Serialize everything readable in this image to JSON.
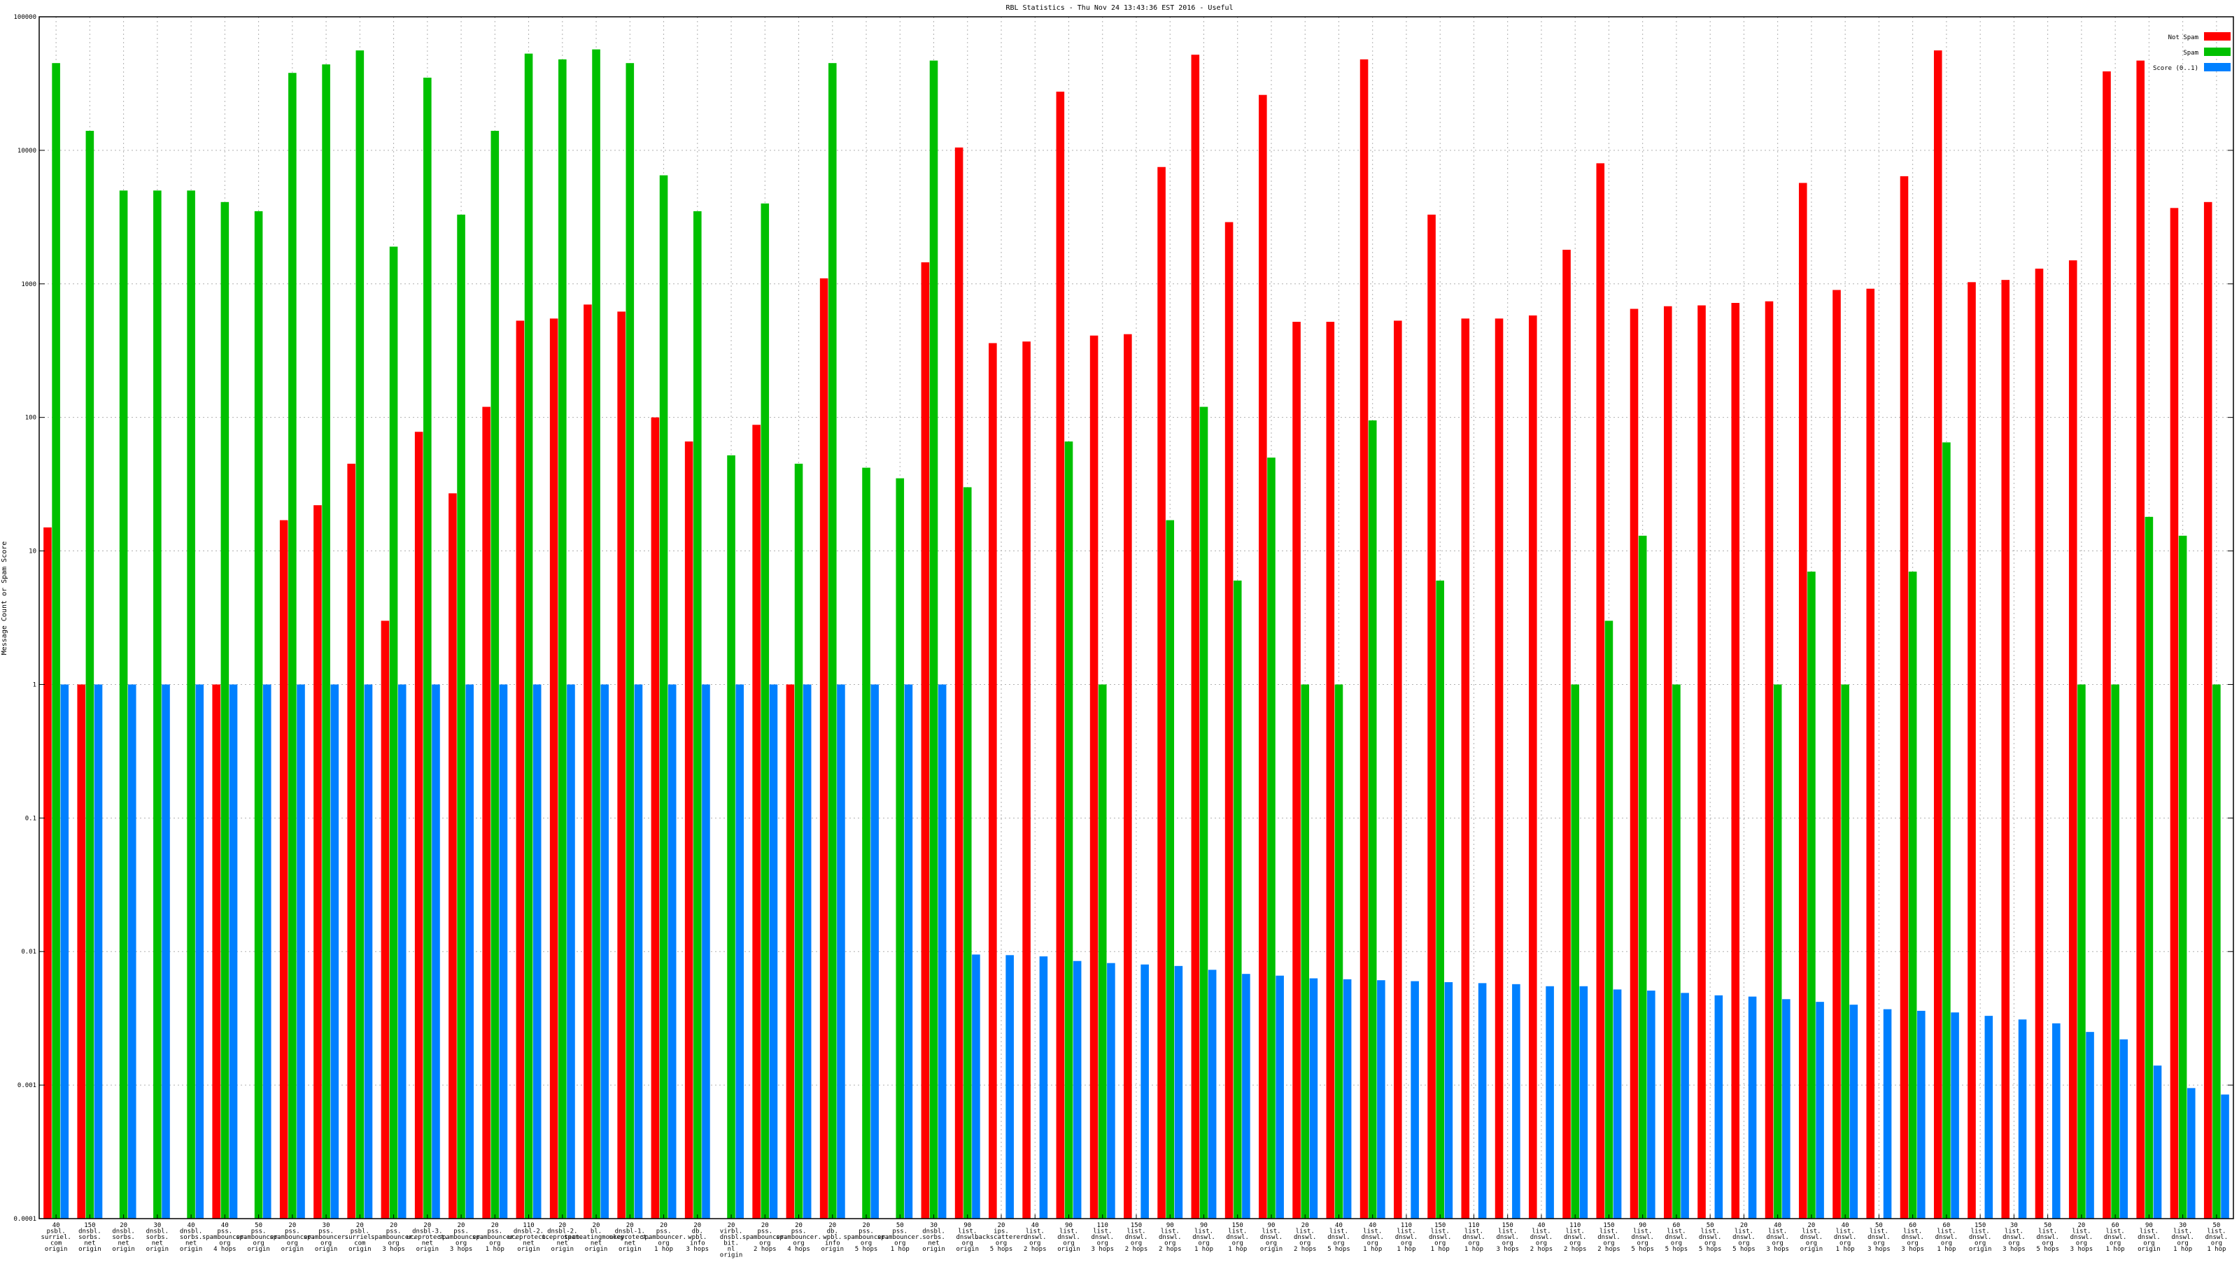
{
  "chart_data": {
    "type": "bar",
    "title": "RBL Statistics - Thu Nov 24 13:43:36 EST 2016 - Useful",
    "ylabel": "Message Count or Spam Score",
    "yscale": "log",
    "ylim": [
      0.0001,
      100000
    ],
    "yticks": [
      {
        "value": 0.0001,
        "label": "0.0001"
      },
      {
        "value": 0.001,
        "label": "0.001"
      },
      {
        "value": 0.01,
        "label": "0.01"
      },
      {
        "value": 0.1,
        "label": "0.1"
      },
      {
        "value": 1,
        "label": "1"
      },
      {
        "value": 10,
        "label": "10"
      },
      {
        "value": 100,
        "label": "100"
      },
      {
        "value": 1000,
        "label": "1000"
      },
      {
        "value": 10000,
        "label": "10000"
      },
      {
        "value": 100000,
        "label": "100000"
      }
    ],
    "grid": true,
    "legend_position": "top-right",
    "categories": [
      [
        "40",
        "psbl.",
        "surriel.",
        "com",
        "origin"
      ],
      [
        "150",
        "dnsbl.",
        "sorbs.",
        "net",
        "origin"
      ],
      [
        "20",
        "dnsbl.",
        "sorbs.",
        "net",
        "origin"
      ],
      [
        "30",
        "dnsbl.",
        "sorbs.",
        "net",
        "origin"
      ],
      [
        "40",
        "dnsbl.",
        "sorbs.",
        "net",
        "origin"
      ],
      [
        "40",
        "pss.",
        "spambouncer.",
        "org",
        "4 hops"
      ],
      [
        "50",
        "pss.",
        "spambouncer.",
        "org",
        "origin"
      ],
      [
        "20",
        "pss.",
        "spambouncer.",
        "org",
        "origin"
      ],
      [
        "30",
        "pss.",
        "spambouncer.",
        "org",
        "origin"
      ],
      [
        "20",
        "psbl.",
        "surriel.",
        "com",
        "origin"
      ],
      [
        "20",
        "pss.",
        "spambouncer.",
        "org",
        "3 hops"
      ],
      [
        "20",
        "dnsbl-3.",
        "uceprotect.",
        "net",
        "origin"
      ],
      [
        "20",
        "pss.",
        "spambouncer.",
        "org",
        "3 hops"
      ],
      [
        "20",
        "pss.",
        "spambouncer.",
        "org",
        "1 hop"
      ],
      [
        "110",
        "dnsbl-2.",
        "uceprotect.",
        "net",
        "origin"
      ],
      [
        "20",
        "dnsbl-2.",
        "uceprotect.",
        "net",
        "origin"
      ],
      [
        "20",
        "bl.",
        "spameatingmonkey.",
        "net",
        "origin"
      ],
      [
        "20",
        "dnsbl-1.",
        "uceprotect.",
        "net",
        "origin"
      ],
      [
        "20",
        "pss.",
        "spambouncer.",
        "org",
        "1 hop"
      ],
      [
        "20",
        "db.",
        "wpbl.",
        "info",
        "3 hops"
      ],
      [
        "20",
        "virbl.",
        "dnsbl.",
        "bit.",
        "nl",
        "origin"
      ],
      [
        "20",
        "pss.",
        "spambouncer.",
        "org",
        "2 hops"
      ],
      [
        "20",
        "pss.",
        "spambouncer.",
        "org",
        "4 hops"
      ],
      [
        "20",
        "db.",
        "wpbl.",
        "info",
        "origin"
      ],
      [
        "20",
        "pss.",
        "spambouncer.",
        "org",
        "5 hops"
      ],
      [
        "50",
        "pss.",
        "spambouncer.",
        "org",
        "1 hop"
      ],
      [
        "30",
        "dnsbl.",
        "sorbs.",
        "net",
        "origin"
      ],
      [
        "90",
        "list.",
        "dnswl.",
        "org",
        "origin"
      ],
      [
        "20",
        "ips.",
        "backscatterer.",
        "org",
        "5 hops"
      ],
      [
        "40",
        "list.",
        "dnswl.",
        "org",
        "2 hops"
      ],
      [
        "90",
        "list.",
        "dnswl.",
        "org",
        "origin"
      ],
      [
        "110",
        "list.",
        "dnswl.",
        "org",
        "3 hops"
      ],
      [
        "150",
        "list.",
        "dnswl.",
        "org",
        "2 hops"
      ],
      [
        "90",
        "list.",
        "dnswl.",
        "org",
        "2 hops"
      ],
      [
        "90",
        "list.",
        "dnswl.",
        "org",
        "1 hop"
      ],
      [
        "150",
        "list.",
        "dnswl.",
        "org",
        "1 hop"
      ],
      [
        "90",
        "list.",
        "dnswl.",
        "org",
        "origin"
      ],
      [
        "20",
        "list.",
        "dnswl.",
        "org",
        "2 hops"
      ],
      [
        "40",
        "list.",
        "dnswl.",
        "org",
        "5 hops"
      ],
      [
        "40",
        "list.",
        "dnswl.",
        "org",
        "1 hop"
      ],
      [
        "110",
        "list.",
        "dnswl.",
        "org",
        "1 hop"
      ],
      [
        "150",
        "list.",
        "dnswl.",
        "org",
        "1 hop"
      ],
      [
        "110",
        "list.",
        "dnswl.",
        "org",
        "1 hop"
      ],
      [
        "150",
        "list.",
        "dnswl.",
        "org",
        "3 hops"
      ],
      [
        "40",
        "list.",
        "dnswl.",
        "org",
        "2 hops"
      ],
      [
        "110",
        "list.",
        "dnswl.",
        "org",
        "2 hops"
      ],
      [
        "150",
        "list.",
        "dnswl.",
        "org",
        "2 hops"
      ],
      [
        "90",
        "list.",
        "dnswl.",
        "org",
        "5 hops"
      ],
      [
        "60",
        "list.",
        "dnswl.",
        "org",
        "5 hops"
      ],
      [
        "50",
        "list.",
        "dnswl.",
        "org",
        "5 hops"
      ],
      [
        "20",
        "list.",
        "dnswl.",
        "org",
        "5 hops"
      ],
      [
        "40",
        "list.",
        "dnswl.",
        "org",
        "3 hops"
      ],
      [
        "20",
        "list.",
        "dnswl.",
        "org",
        "origin"
      ],
      [
        "40",
        "list.",
        "dnswl.",
        "org",
        "1 hop"
      ],
      [
        "50",
        "list.",
        "dnswl.",
        "org",
        "3 hops"
      ],
      [
        "60",
        "list.",
        "dnswl.",
        "org",
        "3 hops"
      ],
      [
        "60",
        "list.",
        "dnswl.",
        "org",
        "1 hop"
      ],
      [
        "150",
        "list.",
        "dnswl.",
        "org",
        "origin"
      ],
      [
        "30",
        "list.",
        "dnswl.",
        "org",
        "3 hops"
      ],
      [
        "50",
        "list.",
        "dnswl.",
        "org",
        "5 hops"
      ],
      [
        "20",
        "list.",
        "dnswl.",
        "org",
        "3 hops"
      ],
      [
        "60",
        "list.",
        "dnswl.",
        "org",
        "1 hop"
      ],
      [
        "90",
        "list.",
        "dnswl.",
        "org",
        "origin"
      ],
      [
        "30",
        "list.",
        "dnswl.",
        "org",
        "1 hop"
      ],
      [
        "50",
        "list.",
        "dnswl.",
        "org",
        "1 hop"
      ]
    ],
    "series": [
      {
        "name": "Not Spam",
        "color": "#ff0000",
        "values": [
          15,
          1,
          0,
          0,
          0,
          1,
          0,
          17,
          22,
          45,
          3,
          78,
          27,
          120,
          530,
          550,
          700,
          620,
          100,
          66,
          0,
          88,
          1,
          1100,
          0,
          0,
          1450,
          10500,
          360,
          370,
          27500,
          410,
          420,
          7500,
          52000,
          2900,
          26000,
          520,
          520,
          48000,
          530,
          3300,
          550,
          550,
          580,
          1800,
          8000,
          650,
          680,
          690,
          720,
          740,
          5700,
          900,
          920,
          6400,
          56000,
          1030,
          1070,
          1300,
          1500,
          39000,
          47000,
          3700,
          4100
        ]
      },
      {
        "name": "Spam",
        "color": "#00c000",
        "values": [
          45000,
          14000,
          5000,
          5000,
          5000,
          4100,
          3500,
          38000,
          44000,
          56000,
          1900,
          35000,
          3300,
          14000,
          53000,
          48000,
          57000,
          45000,
          6500,
          3500,
          52,
          4000,
          45,
          45000,
          42,
          35,
          47000,
          30,
          0,
          0,
          66,
          1,
          0,
          17,
          120,
          6,
          50,
          1,
          1,
          95,
          0,
          6,
          0,
          0,
          0,
          1,
          3,
          13,
          1,
          0,
          0,
          1,
          7,
          1,
          0,
          7,
          65,
          0,
          0,
          0,
          1,
          1,
          18,
          13,
          1
        ]
      },
      {
        "name": "Score (0..1)",
        "color": "#0080ff",
        "values": [
          1,
          1,
          1,
          1,
          1,
          1,
          1,
          1,
          1,
          1,
          1,
          1,
          1,
          1,
          1,
          1,
          1,
          1,
          1,
          1,
          1,
          1,
          1,
          1,
          1,
          1,
          1,
          0.0095,
          0.0094,
          0.0092,
          0.0085,
          0.0082,
          0.008,
          0.0078,
          0.0073,
          0.0068,
          0.0066,
          0.0063,
          0.0062,
          0.0061,
          0.006,
          0.0059,
          0.0058,
          0.0057,
          0.0055,
          0.0055,
          0.0052,
          0.0051,
          0.0049,
          0.0047,
          0.0046,
          0.0044,
          0.0042,
          0.004,
          0.0037,
          0.0036,
          0.0035,
          0.0033,
          0.0031,
          0.0029,
          0.0025,
          0.0022,
          0.0014,
          0.00095,
          0.00085
        ]
      }
    ]
  }
}
